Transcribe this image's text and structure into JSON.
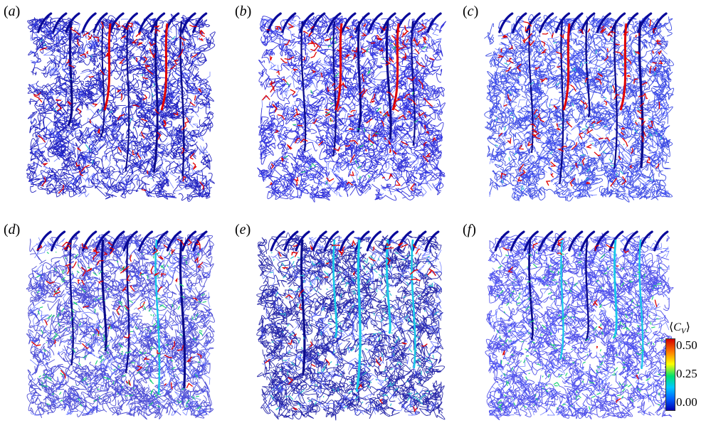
{
  "panels": [
    {
      "label": "a",
      "hot": 0.1,
      "mid": 0.02,
      "red_fraction": 0.55
    },
    {
      "label": "b",
      "hot": 0.16,
      "mid": 0.04,
      "red_fraction": 0.65
    },
    {
      "label": "c",
      "hot": 0.14,
      "mid": 0.08,
      "red_fraction": 0.55
    },
    {
      "label": "d",
      "hot": 0.08,
      "mid": 0.22,
      "red_fraction": 0.35
    },
    {
      "label": "e",
      "hot": 0.05,
      "mid": 0.26,
      "red_fraction": 0.2
    },
    {
      "label": "f",
      "hot": 0.02,
      "mid": 0.22,
      "red_fraction": 0.1
    }
  ],
  "colorbar": {
    "title": "⟨C_V⟩",
    "ticks": [
      "0.50",
      "0.25",
      "0.00"
    ],
    "colors": [
      "#d00000",
      "#ff7a00",
      "#ffff00",
      "#00e070",
      "#00c8ff",
      "#0060ff",
      "#0000b0"
    ]
  }
}
